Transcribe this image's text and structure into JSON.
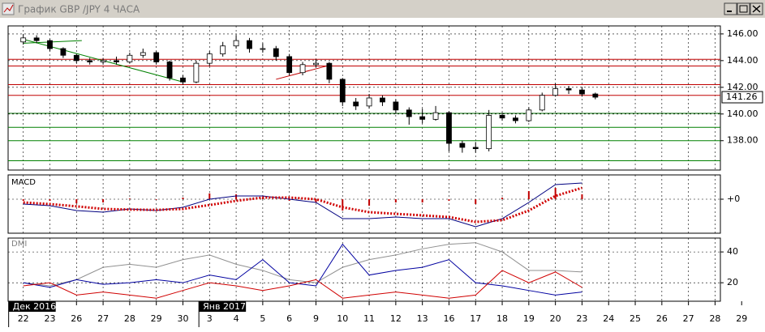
{
  "window": {
    "title": "График GBP /JPY  4 ЧАСА"
  },
  "chart_data": [
    {
      "type": "candlestick",
      "x": [
        0,
        0.5,
        1,
        1.5,
        2,
        2.5,
        3,
        3.5,
        4,
        4.5,
        5,
        5.5,
        6,
        6.5,
        7,
        7.5,
        8,
        8.5,
        9,
        9.5,
        10,
        10.5,
        11,
        11.5,
        12,
        12.5,
        13,
        13.5,
        14,
        14.5,
        15,
        15.5,
        16,
        16.5,
        17,
        17.5,
        18,
        18.5,
        19,
        19.5,
        20,
        20.5,
        21,
        21.5
      ],
      "open": [
        145.4,
        145.7,
        145.5,
        144.9,
        144.4,
        144.0,
        143.9,
        144.0,
        143.9,
        144.4,
        144.6,
        143.9,
        142.7,
        142.4,
        143.8,
        144.5,
        145.1,
        145.5,
        144.9,
        144.9,
        144.3,
        143.1,
        143.7,
        143.8,
        142.6,
        140.9,
        140.6,
        141.2,
        140.9,
        140.3,
        139.8,
        139.6,
        140.1,
        137.8,
        137.5,
        137.4,
        139.9,
        139.7,
        139.5,
        140.3,
        141.4,
        141.9,
        141.8,
        141.5
      ],
      "high": [
        146.0,
        145.9,
        145.6,
        145.0,
        144.5,
        144.2,
        144.2,
        144.3,
        144.6,
        144.9,
        144.7,
        144.0,
        142.9,
        144.0,
        144.7,
        145.4,
        145.9,
        145.7,
        145.3,
        145.1,
        144.5,
        143.9,
        144.1,
        143.9,
        142.7,
        141.2,
        141.5,
        141.4,
        141.1,
        140.5,
        140.4,
        140.6,
        140.2,
        138.0,
        137.9,
        140.3,
        140.1,
        139.9,
        140.5,
        141.6,
        142.3,
        142.1,
        142.0,
        141.6
      ],
      "low": [
        145.2,
        145.3,
        144.7,
        144.2,
        143.8,
        143.7,
        143.7,
        143.7,
        143.8,
        144.2,
        143.7,
        142.5,
        142.2,
        142.3,
        143.6,
        144.3,
        144.9,
        144.6,
        144.6,
        144.0,
        142.9,
        142.9,
        143.5,
        142.3,
        140.6,
        140.3,
        140.4,
        140.6,
        140.0,
        139.2,
        139.3,
        139.5,
        137.2,
        137.1,
        137.1,
        137.2,
        139.5,
        139.3,
        139.4,
        140.2,
        141.3,
        141.5,
        141.3,
        141.1
      ],
      "close": [
        145.7,
        145.5,
        144.9,
        144.4,
        144.0,
        143.9,
        144.0,
        143.9,
        144.4,
        144.6,
        143.9,
        142.7,
        142.4,
        143.8,
        144.5,
        145.1,
        145.5,
        144.9,
        144.9,
        144.3,
        143.1,
        143.7,
        143.8,
        142.6,
        140.9,
        140.6,
        141.2,
        140.9,
        140.3,
        139.8,
        139.6,
        140.1,
        137.8,
        137.5,
        137.4,
        139.9,
        139.7,
        139.5,
        140.3,
        141.4,
        141.9,
        141.8,
        141.5,
        141.26
      ],
      "ylim": [
        135.8,
        146.6
      ],
      "yticks": [
        {
          "value": 138,
          "label": "138.00"
        },
        {
          "value": 140,
          "label": "140.00"
        },
        {
          "value": 142,
          "label": "142.00"
        },
        {
          "value": 144,
          "label": "144.00"
        },
        {
          "value": 146,
          "label": "146.00"
        }
      ],
      "levels": [
        {
          "value": 144.1,
          "color": "#c00000"
        },
        {
          "value": 143.6,
          "color": "#c00000"
        },
        {
          "value": 142.2,
          "color": "#c00000"
        },
        {
          "value": 141.4,
          "color": "#c00000"
        },
        {
          "value": 140.05,
          "color": "#006400"
        },
        {
          "value": 139.0,
          "color": "#008000"
        },
        {
          "value": 138.0,
          "color": "#008000"
        },
        {
          "value": 136.5,
          "color": "#008000"
        }
      ],
      "trendlines": [
        {
          "x": [
            0,
            6
          ],
          "y": [
            145.6,
            142.4
          ],
          "color": "#008000"
        },
        {
          "x": [
            0,
            2.2
          ],
          "y": [
            145.3,
            145.5
          ],
          "color": "#008000"
        },
        {
          "x": [
            9.5,
            11.6
          ],
          "y": [
            142.6,
            143.7
          ],
          "color": "#c00000"
        }
      ],
      "grid": true
    },
    {
      "type": "combo",
      "title": "MACD",
      "x": [
        0,
        1,
        2,
        3,
        4,
        5,
        6,
        7,
        8,
        9,
        10,
        11,
        12,
        13,
        14,
        15,
        16,
        17,
        18,
        19,
        20,
        21
      ],
      "ylim": [
        -1.05,
        0.75
      ],
      "yticks": [
        {
          "value": 0,
          "label": "+0"
        }
      ],
      "histogram": {
        "color": "#c00000",
        "values": [
          -0.05,
          -0.05,
          -0.13,
          -0.1,
          0.02,
          -0.02,
          0.05,
          0.18,
          0.15,
          0.05,
          -0.05,
          -0.1,
          -0.35,
          -0.2,
          -0.1,
          -0.1,
          -0.05,
          -0.15,
          0.05,
          0.25,
          0.35,
          0.15
        ]
      },
      "series": [
        {
          "color": "#000080",
          "style": "solid",
          "values": [
            -0.15,
            -0.2,
            -0.35,
            -0.4,
            -0.3,
            -0.35,
            -0.25,
            0.0,
            0.1,
            0.1,
            0.0,
            -0.1,
            -0.6,
            -0.6,
            -0.55,
            -0.6,
            -0.6,
            -0.85,
            -0.6,
            -0.1,
            0.45,
            0.5
          ]
        },
        {
          "color": "#d00000",
          "style": "dotted",
          "values": [
            -0.1,
            -0.15,
            -0.22,
            -0.3,
            -0.32,
            -0.33,
            -0.3,
            -0.18,
            -0.05,
            0.05,
            0.05,
            0.0,
            -0.25,
            -0.4,
            -0.45,
            -0.5,
            -0.55,
            -0.7,
            -0.65,
            -0.35,
            0.1,
            0.35
          ]
        }
      ],
      "grid": true
    },
    {
      "type": "line",
      "title": "DMI",
      "x": [
        0,
        1,
        2,
        3,
        4,
        5,
        6,
        7,
        8,
        9,
        10,
        11,
        12,
        13,
        14,
        15,
        16,
        17,
        18,
        19,
        20,
        21
      ],
      "ylim": [
        8,
        49
      ],
      "yticks": [
        20,
        40
      ],
      "series": [
        {
          "color": "#909090",
          "style": "solid",
          "values": [
            20,
            18,
            22,
            30,
            32,
            30,
            35,
            38,
            32,
            28,
            22,
            20,
            30,
            35,
            38,
            42,
            45,
            46,
            40,
            28,
            28,
            27
          ]
        },
        {
          "color": "#0000a0",
          "style": "solid",
          "values": [
            20,
            17,
            22,
            19,
            20,
            22,
            20,
            25,
            22,
            35,
            20,
            18,
            45,
            25,
            28,
            30,
            35,
            20,
            18,
            15,
            12,
            14
          ]
        },
        {
          "color": "#d00000",
          "style": "solid",
          "values": [
            18,
            20,
            12,
            14,
            12,
            10,
            15,
            20,
            18,
            15,
            18,
            22,
            10,
            12,
            14,
            12,
            10,
            12,
            28,
            20,
            27,
            17
          ]
        }
      ],
      "xlim": [
        -0.57,
        26.2
      ],
      "xticks": [
        {
          "value": 0,
          "label": "22"
        },
        {
          "value": 1,
          "label": "23"
        },
        {
          "value": 2,
          "label": "26"
        },
        {
          "value": 3,
          "label": "27"
        },
        {
          "value": 4,
          "label": "28"
        },
        {
          "value": 5,
          "label": "29"
        },
        {
          "value": 6,
          "label": "30"
        },
        {
          "value": 7,
          "label": "3"
        },
        {
          "value": 8,
          "label": "4"
        },
        {
          "value": 9,
          "label": "5"
        },
        {
          "value": 10,
          "label": "6"
        },
        {
          "value": 11,
          "label": "9"
        },
        {
          "value": 12,
          "label": "10"
        },
        {
          "value": 13,
          "label": "11"
        },
        {
          "value": 14,
          "label": "12"
        },
        {
          "value": 15,
          "label": "13"
        },
        {
          "value": 16,
          "label": "16"
        },
        {
          "value": 17,
          "label": "17"
        },
        {
          "value": 18,
          "label": "18"
        },
        {
          "value": 19,
          "label": "19"
        },
        {
          "value": 20,
          "label": "20"
        },
        {
          "value": 21,
          "label": "23"
        },
        {
          "value": 22,
          "label": "24"
        },
        {
          "value": 23,
          "label": "25"
        },
        {
          "value": 24,
          "label": "26"
        },
        {
          "value": 25,
          "label": "27"
        },
        {
          "value": 26,
          "label": "28"
        },
        {
          "value": 27,
          "label": "29"
        }
      ],
      "xmarkers": [
        {
          "value": -0.55,
          "label": "Дек 2016"
        },
        {
          "value": 6.6,
          "label": "Янв 2017"
        }
      ],
      "grid": true
    }
  ]
}
